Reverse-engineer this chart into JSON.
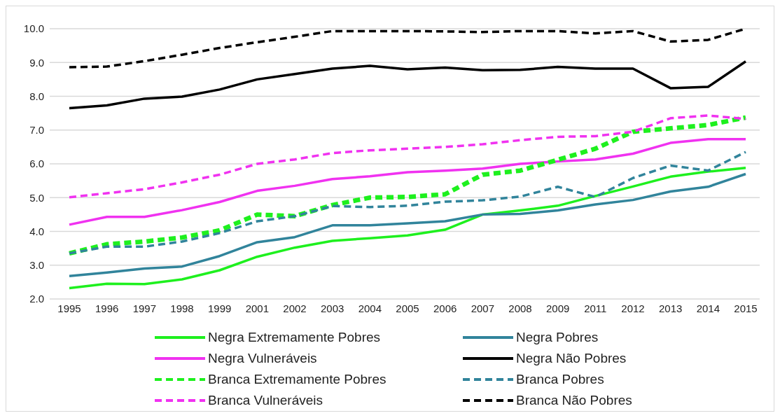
{
  "chart_data": {
    "type": "line",
    "categories": [
      "1995",
      "1996",
      "1997",
      "1998",
      "1999",
      "2001",
      "2002",
      "2003",
      "2004",
      "2005",
      "2006",
      "2007",
      "2008",
      "2009",
      "2011",
      "2012",
      "2013",
      "2014",
      "2015"
    ],
    "series": [
      {
        "name": "Negra Extremamente Pobres",
        "color": "#1ef01e",
        "line_style": "solid",
        "values": [
          2.32,
          2.45,
          2.44,
          2.58,
          2.85,
          3.25,
          3.52,
          3.72,
          3.8,
          3.88,
          4.05,
          4.5,
          4.62,
          4.76,
          5.05,
          5.33,
          5.62,
          5.77,
          5.88
        ]
      },
      {
        "name": "Negra Pobres",
        "color": "#31849b",
        "line_style": "solid",
        "values": [
          2.68,
          2.78,
          2.9,
          2.96,
          3.27,
          3.68,
          3.83,
          4.18,
          4.18,
          4.24,
          4.3,
          4.5,
          4.52,
          4.62,
          4.8,
          4.93,
          5.18,
          5.32,
          5.7
        ]
      },
      {
        "name": "Negra Vulneráveis",
        "color": "#f032f0",
        "line_style": "solid",
        "values": [
          4.2,
          4.43,
          4.43,
          4.63,
          4.87,
          5.2,
          5.35,
          5.55,
          5.63,
          5.75,
          5.8,
          5.86,
          6.0,
          6.07,
          6.13,
          6.3,
          6.62,
          6.73,
          6.73
        ]
      },
      {
        "name": "Negra Não Pobres",
        "color": "#000000",
        "line_style": "solid",
        "values": [
          7.65,
          7.73,
          7.93,
          7.99,
          8.2,
          8.5,
          8.66,
          8.82,
          8.9,
          8.8,
          8.85,
          8.77,
          8.78,
          8.87,
          8.82,
          8.82,
          8.24,
          8.28,
          9.03
        ]
      },
      {
        "name": "Branca Extremamente Pobres",
        "color": "#1ef01e",
        "line_style": "dashed",
        "values": [
          3.35,
          3.62,
          3.7,
          3.82,
          4.03,
          4.5,
          4.45,
          4.78,
          5.0,
          5.02,
          5.1,
          5.68,
          5.8,
          6.12,
          6.45,
          6.95,
          7.05,
          7.15,
          7.37
        ]
      },
      {
        "name": "Branca Pobres",
        "color": "#31849b",
        "line_style": "dashed",
        "values": [
          3.35,
          3.55,
          3.55,
          3.7,
          3.95,
          4.3,
          4.45,
          4.75,
          4.72,
          4.76,
          4.88,
          4.92,
          5.03,
          5.32,
          5.02,
          5.58,
          5.95,
          5.8,
          6.35
        ]
      },
      {
        "name": "Branca Vulneráveis",
        "color": "#f032f0",
        "line_style": "dashed",
        "values": [
          5.01,
          5.13,
          5.25,
          5.45,
          5.68,
          6.0,
          6.13,
          6.32,
          6.4,
          6.45,
          6.5,
          6.58,
          6.7,
          6.8,
          6.82,
          6.95,
          7.35,
          7.43,
          7.33
        ]
      },
      {
        "name": "Branca Não Pobres",
        "color": "#000000",
        "line_style": "dashed",
        "values": [
          8.86,
          8.88,
          9.04,
          9.23,
          9.43,
          9.6,
          9.76,
          9.93,
          9.93,
          9.93,
          9.92,
          9.9,
          9.93,
          9.93,
          9.86,
          9.93,
          9.62,
          9.67,
          10.0
        ]
      }
    ],
    "ylim": [
      2,
      10
    ],
    "yticks": [
      {
        "value": 2,
        "label": "2.0"
      },
      {
        "value": 3,
        "label": "3.0"
      },
      {
        "value": 4,
        "label": "4.0"
      },
      {
        "value": 5,
        "label": "5.0"
      },
      {
        "value": 6,
        "label": "6.0"
      },
      {
        "value": 7,
        "label": "7.0"
      },
      {
        "value": 8,
        "label": "8.0"
      },
      {
        "value": 9,
        "label": "9.0"
      },
      {
        "value": 10,
        "label": "10.0"
      }
    ],
    "grid": "y",
    "legend": "bottom",
    "marker": "none"
  }
}
